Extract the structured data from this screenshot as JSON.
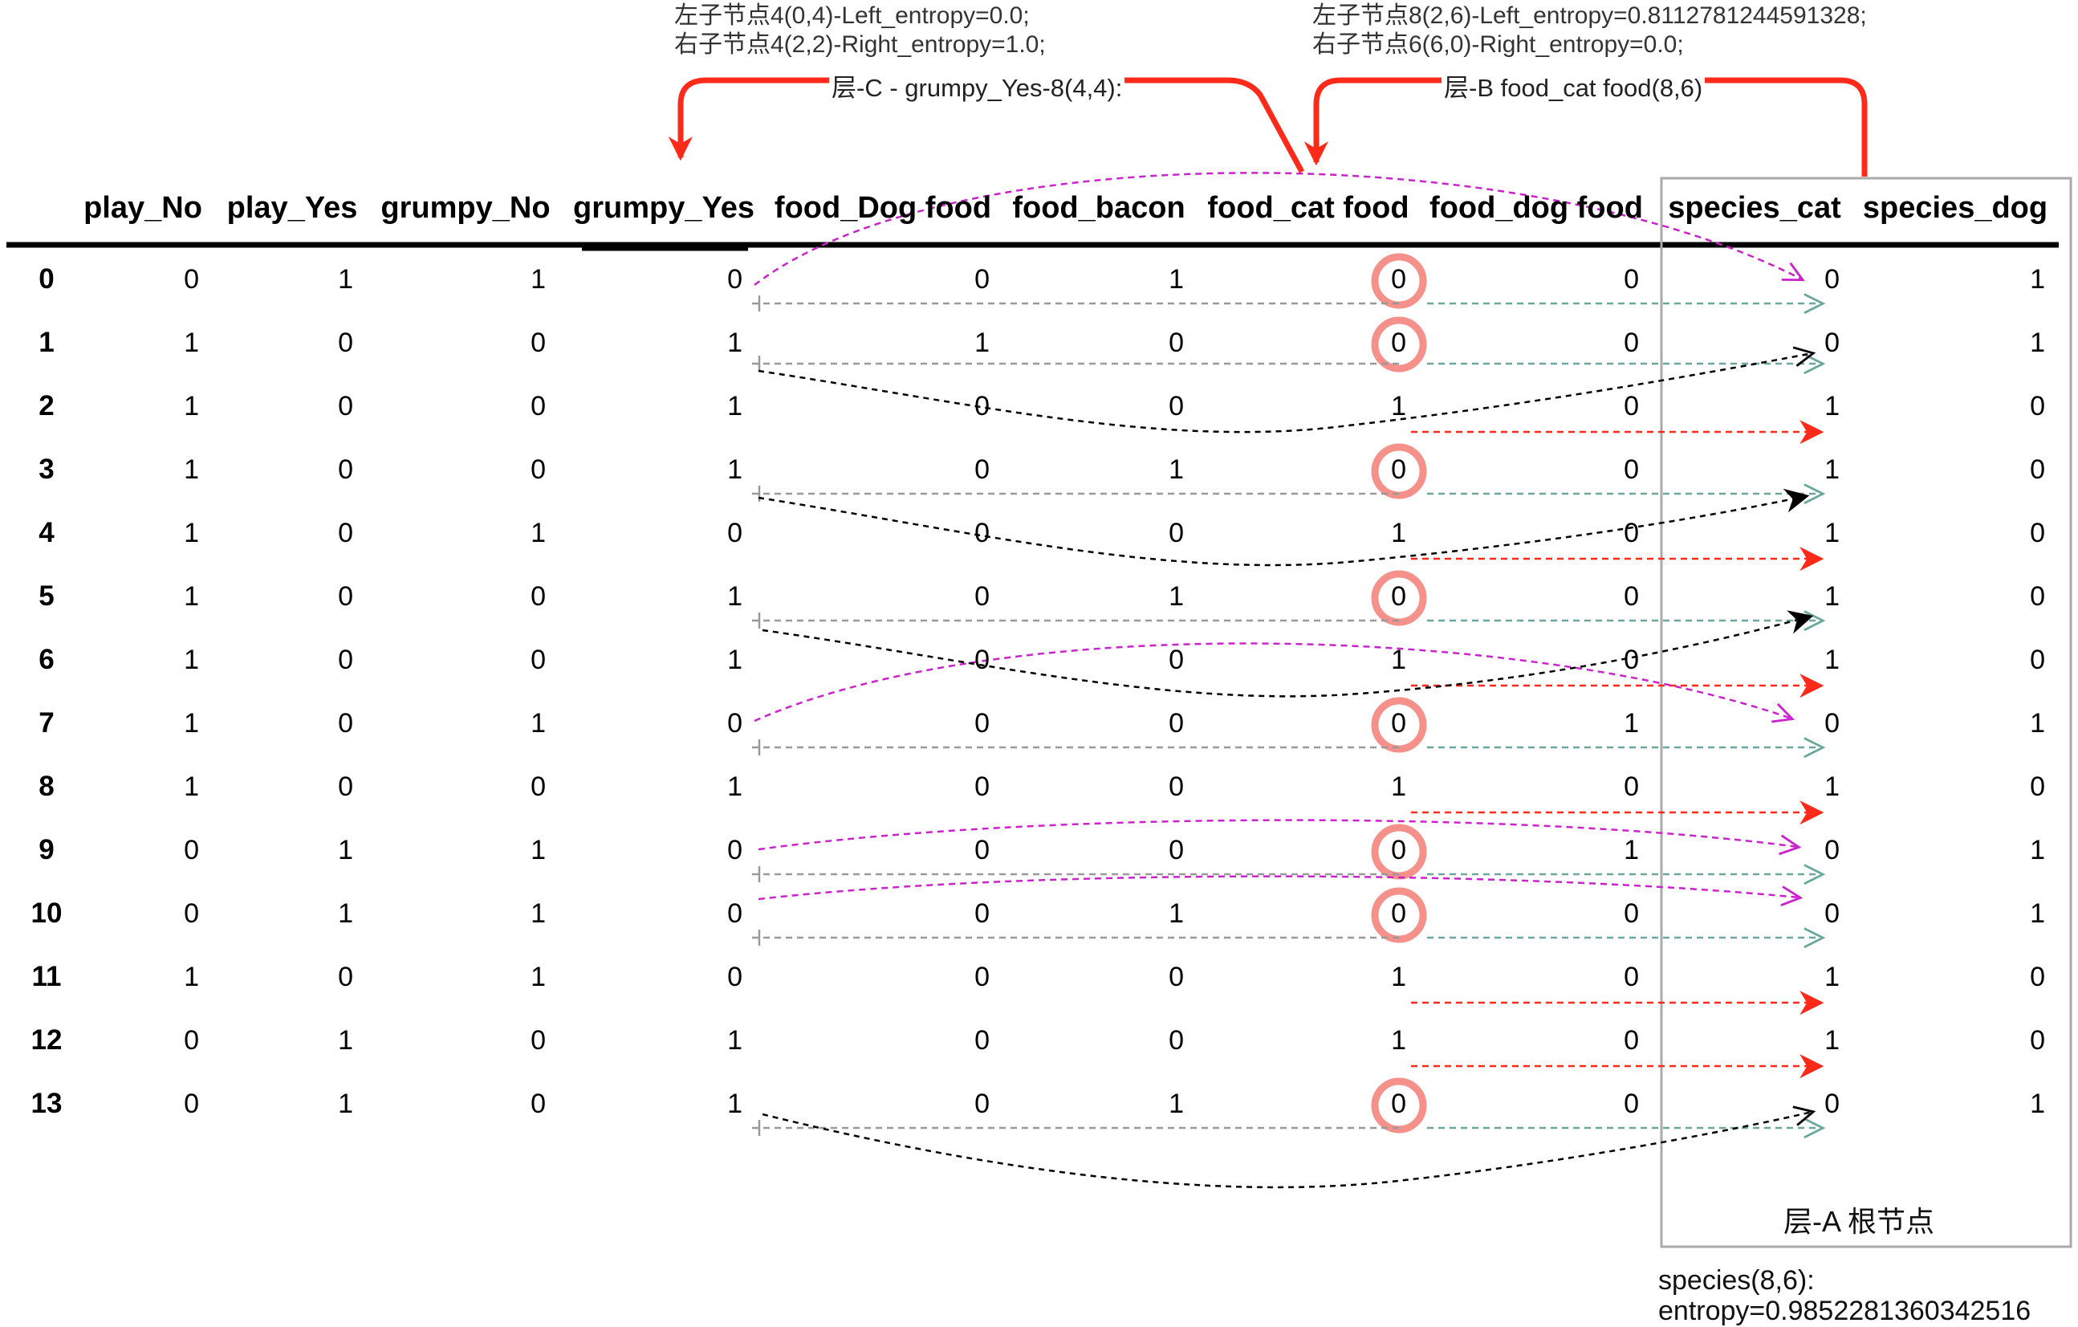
{
  "table": {
    "columns": [
      "play_No",
      "play_Yes",
      "grumpy_No",
      "grumpy_Yes",
      "food_Dog food",
      "food_bacon",
      "food_cat food",
      "food_dog food",
      "species_cat",
      "species_dog"
    ],
    "rows": [
      {
        "index": "0",
        "values": [
          "0",
          "1",
          "1",
          "0",
          "0",
          "1",
          "0",
          "0",
          "0",
          "1"
        ]
      },
      {
        "index": "1",
        "values": [
          "1",
          "0",
          "0",
          "1",
          "1",
          "0",
          "0",
          "0",
          "0",
          "1"
        ]
      },
      {
        "index": "2",
        "values": [
          "1",
          "0",
          "0",
          "1",
          "0",
          "0",
          "1",
          "0",
          "1",
          "0"
        ]
      },
      {
        "index": "3",
        "values": [
          "1",
          "0",
          "0",
          "1",
          "0",
          "1",
          "0",
          "0",
          "1",
          "0"
        ]
      },
      {
        "index": "4",
        "values": [
          "1",
          "0",
          "1",
          "0",
          "0",
          "0",
          "1",
          "0",
          "1",
          "0"
        ]
      },
      {
        "index": "5",
        "values": [
          "1",
          "0",
          "0",
          "1",
          "0",
          "1",
          "0",
          "0",
          "1",
          "0"
        ]
      },
      {
        "index": "6",
        "values": [
          "1",
          "0",
          "0",
          "1",
          "0",
          "0",
          "1",
          "0",
          "1",
          "0"
        ]
      },
      {
        "index": "7",
        "values": [
          "1",
          "0",
          "1",
          "0",
          "0",
          "0",
          "0",
          "1",
          "0",
          "1"
        ]
      },
      {
        "index": "8",
        "values": [
          "1",
          "0",
          "0",
          "1",
          "0",
          "0",
          "1",
          "0",
          "1",
          "0"
        ]
      },
      {
        "index": "9",
        "values": [
          "0",
          "1",
          "1",
          "0",
          "0",
          "0",
          "0",
          "1",
          "0",
          "1"
        ]
      },
      {
        "index": "10",
        "values": [
          "0",
          "1",
          "1",
          "0",
          "0",
          "1",
          "0",
          "0",
          "0",
          "1"
        ]
      },
      {
        "index": "11",
        "values": [
          "1",
          "0",
          "1",
          "0",
          "0",
          "0",
          "1",
          "0",
          "1",
          "0"
        ]
      },
      {
        "index": "12",
        "values": [
          "0",
          "1",
          "0",
          "1",
          "0",
          "0",
          "1",
          "0",
          "1",
          "0"
        ]
      },
      {
        "index": "13",
        "values": [
          "0",
          "1",
          "0",
          "1",
          "0",
          "1",
          "0",
          "0",
          "0",
          "1"
        ]
      }
    ]
  },
  "annotations": {
    "c_child_left": "左子节点4(0,4)-Left_entropy=0.0;",
    "c_child_right": "右子节点4(2,2)-Right_entropy=1.0;",
    "b_child_left": "左子节点8(2,6)-Left_entropy=0.8112781244591328;",
    "b_child_right": "右子节点6(6,0)-Right_entropy=0.0;",
    "layer_c": "层-C - grumpy_Yes-8(4,4):",
    "layer_b": "层-B food_cat food(8,6)",
    "layer_a": "层-A 根节点",
    "root_species": "species(8,6):",
    "root_entropy": "entropy=0.9852281360342516"
  },
  "colors": {
    "red": "#ff2a1a",
    "circle": "#f5908a",
    "teal": "#6aa89c",
    "magenta": "#cc22cc",
    "gray": "#999999",
    "black": "#000000"
  }
}
